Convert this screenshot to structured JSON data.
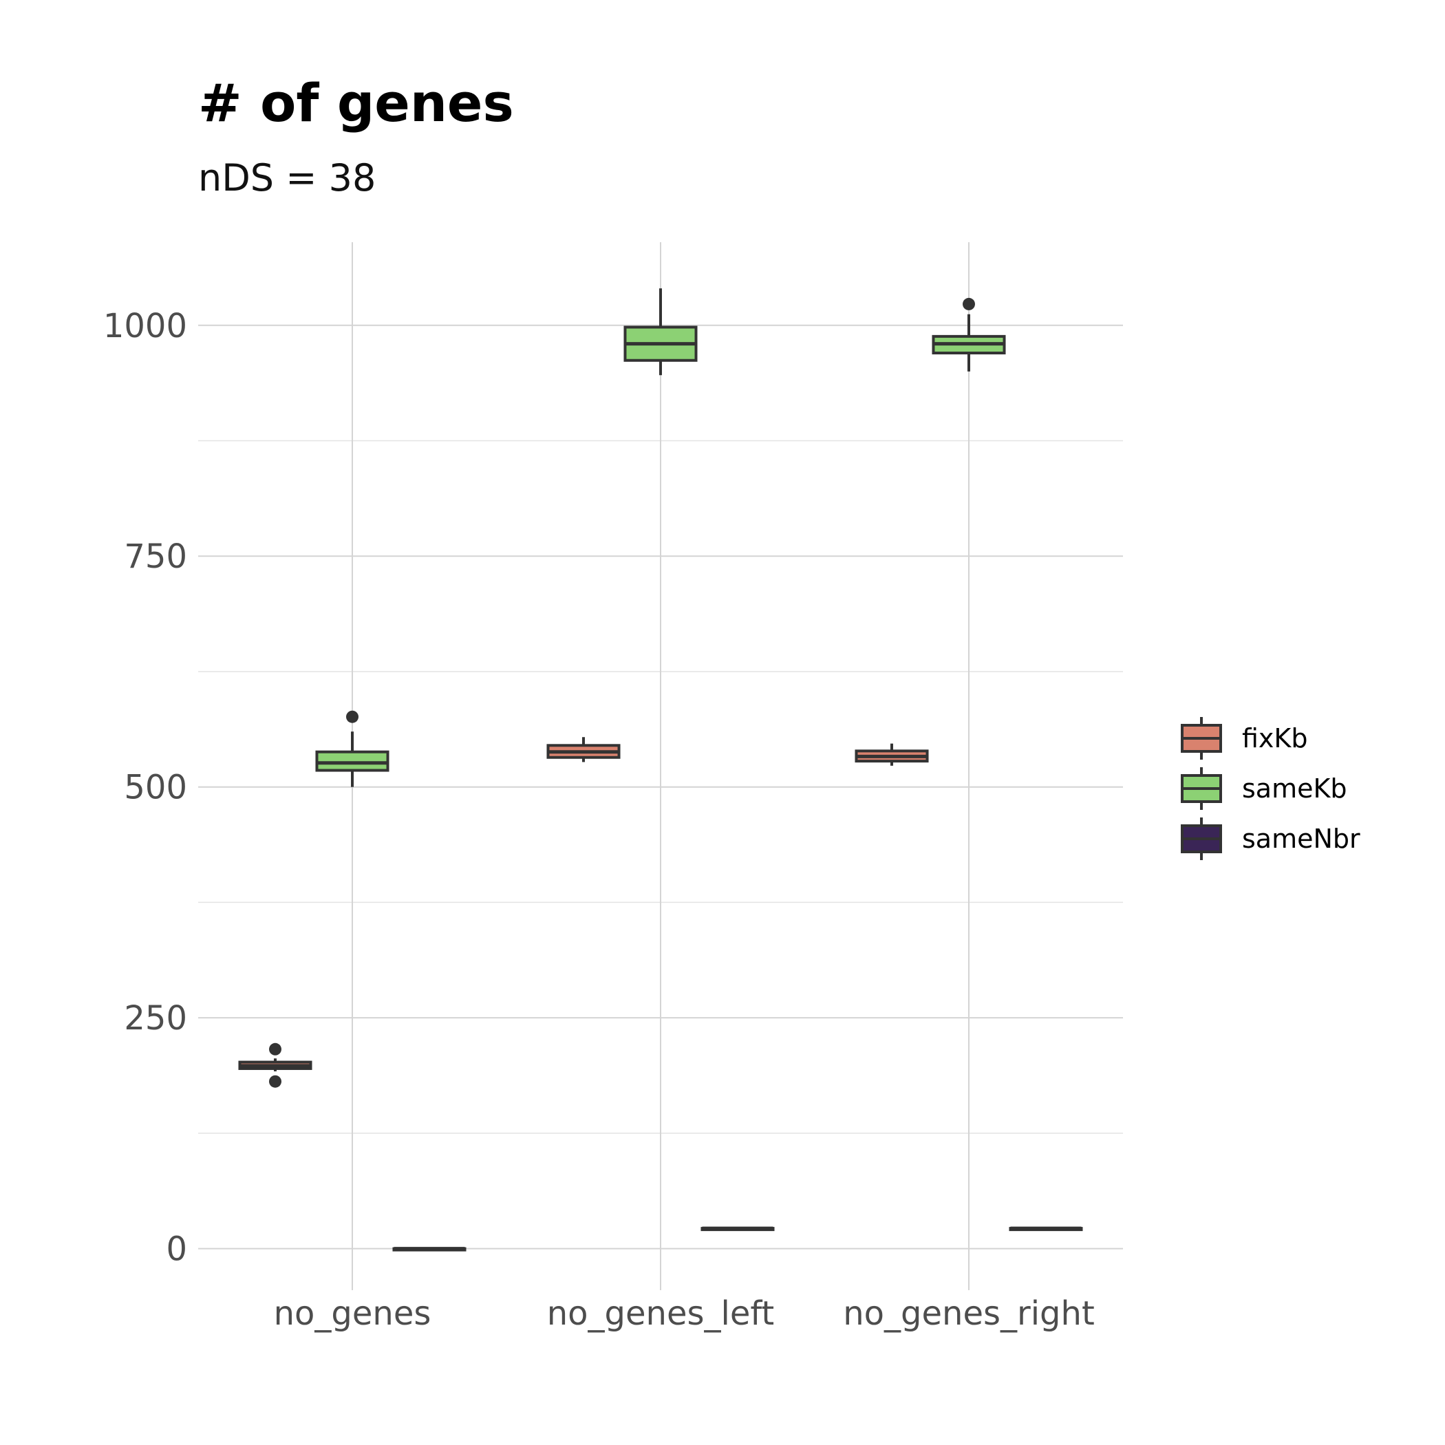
{
  "chart_data": {
    "type": "box",
    "title": "# of genes",
    "subtitle": "nDS = 38",
    "categories": [
      "no_genes",
      "no_genes_left",
      "no_genes_right"
    ],
    "ylim": [
      -45,
      1090
    ],
    "yticks": [
      0,
      250,
      500,
      750,
      1000
    ],
    "grid": true,
    "legend_position": "right",
    "series": [
      {
        "name": "fixKb",
        "color": "#D9826E",
        "boxes": [
          {
            "min": 192,
            "q1": 195,
            "median": 198,
            "q3": 202,
            "max": 206,
            "outliers": [
              216,
              181
            ]
          },
          {
            "min": 527,
            "q1": 532,
            "median": 538,
            "q3": 545,
            "max": 554,
            "outliers": []
          },
          {
            "min": 523,
            "q1": 528,
            "median": 533,
            "q3": 539,
            "max": 547,
            "outliers": []
          }
        ]
      },
      {
        "name": "sameKb",
        "color": "#8CD174",
        "boxes": [
          {
            "min": 500,
            "q1": 518,
            "median": 526,
            "q3": 538,
            "max": 560,
            "outliers": [
              576
            ]
          },
          {
            "min": 946,
            "q1": 962,
            "median": 980,
            "q3": 998,
            "max": 1040,
            "outliers": []
          },
          {
            "min": 950,
            "q1": 970,
            "median": 980,
            "q3": 988,
            "max": 1012,
            "outliers": [
              1023
            ]
          }
        ]
      },
      {
        "name": "sameNbr",
        "color": "#3A2556",
        "boxes": [
          {
            "min": 0,
            "q1": 0,
            "median": 0,
            "q3": 0,
            "max": 0,
            "outliers": []
          },
          {
            "min": 22,
            "q1": 22,
            "median": 22,
            "q3": 22,
            "max": 22,
            "outliers": []
          },
          {
            "min": 22,
            "q1": 22,
            "median": 22,
            "q3": 22,
            "max": 22,
            "outliers": []
          }
        ]
      }
    ]
  }
}
